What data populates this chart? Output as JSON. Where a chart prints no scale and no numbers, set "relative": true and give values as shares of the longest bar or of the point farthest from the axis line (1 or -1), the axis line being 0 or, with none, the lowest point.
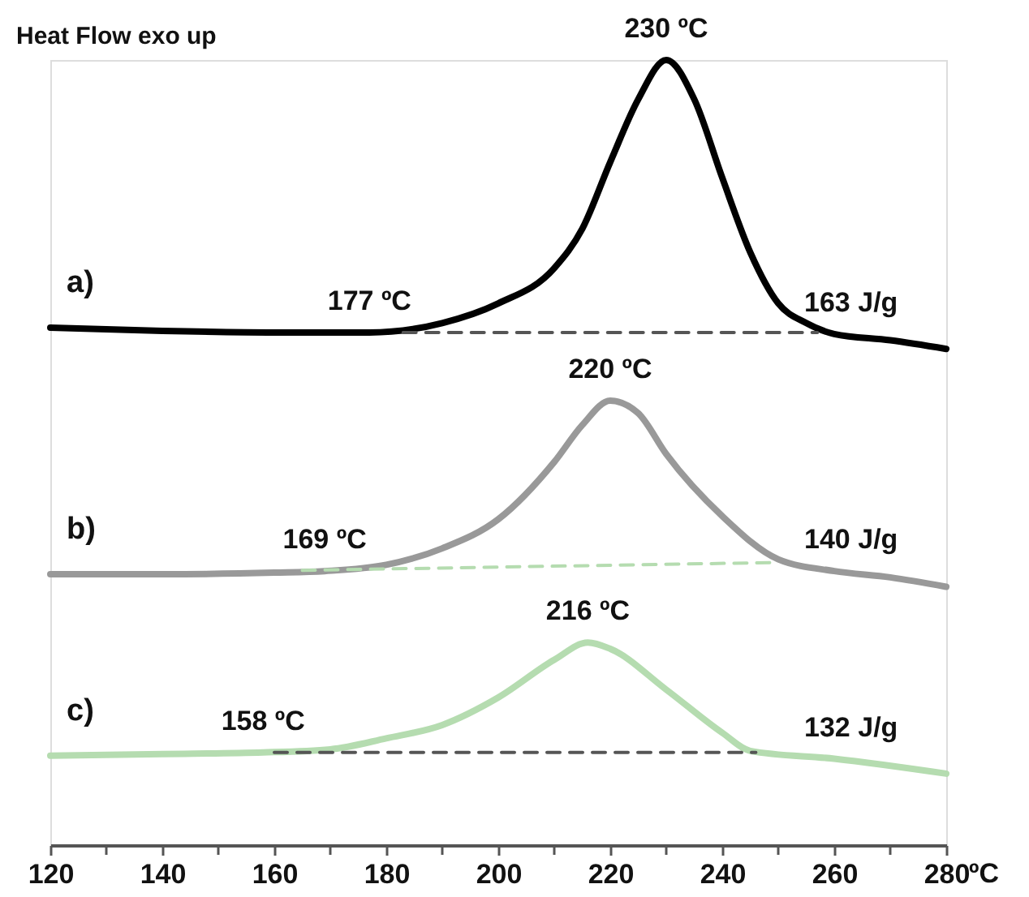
{
  "chart_data": {
    "type": "line",
    "relative": true,
    "ylabel": "Heat Flow exo up",
    "xlabel": "ºC",
    "xlim": [
      120,
      280
    ],
    "xticks": [
      120,
      {
        "value": 130,
        "label": null
      },
      140,
      {
        "value": 150,
        "label": null
      },
      160,
      {
        "value": 170,
        "label": null
      },
      180,
      {
        "value": 190,
        "label": null
      },
      200,
      {
        "value": 210,
        "label": null
      },
      220,
      {
        "value": 230,
        "label": null
      },
      240,
      {
        "value": 250,
        "label": null
      },
      260,
      {
        "value": 270,
        "label": null
      },
      280
    ],
    "grid": false,
    "marker": "none",
    "line_style": "solid",
    "series": [
      {
        "name": "a)",
        "color": "#000000",
        "x": [
          120,
          140,
          160,
          177,
          190,
          200,
          210,
          215,
          220,
          225,
          230,
          235,
          240,
          245,
          250,
          255,
          260,
          270,
          280
        ],
        "values": [
          0.659,
          0.655,
          0.653,
          0.653,
          0.665,
          0.69,
          0.735,
          0.785,
          0.87,
          0.95,
          1.0,
          0.95,
          0.85,
          0.755,
          0.69,
          0.665,
          0.651,
          0.643,
          0.632
        ]
      },
      {
        "name": "b)",
        "color": "#999999",
        "x": [
          120,
          140,
          160,
          169,
          180,
          190,
          200,
          210,
          215,
          220,
          225,
          230,
          240,
          250,
          260,
          270,
          280
        ],
        "values": [
          0.345,
          0.345,
          0.347,
          0.349,
          0.357,
          0.378,
          0.415,
          0.488,
          0.535,
          0.566,
          0.55,
          0.498,
          0.419,
          0.364,
          0.349,
          0.341,
          0.329
        ]
      },
      {
        "name": "c)",
        "color": "#b5dcb0",
        "x": [
          120,
          140,
          158,
          170,
          180,
          190,
          200,
          210,
          216,
          220,
          230,
          240,
          245,
          260,
          280
        ],
        "values": [
          0.114,
          0.116,
          0.118,
          0.122,
          0.136,
          0.153,
          0.188,
          0.236,
          0.258,
          0.25,
          0.198,
          0.143,
          0.12,
          0.11,
          0.091
        ]
      },
      {
        "type": "line",
        "line_style": "dashed",
        "color": "#555555",
        "x": [
          183,
          257
        ],
        "values": [
          0.653,
          0.653
        ]
      },
      {
        "type": "line",
        "line_style": "dashed",
        "color": "#b5dcb0",
        "x": [
          165,
          250
        ],
        "values": [
          0.35,
          0.36
        ]
      },
      {
        "type": "line",
        "line_style": "dashed",
        "color": "#555555",
        "x": [
          160,
          246
        ],
        "values": [
          0.118,
          0.118
        ]
      }
    ],
    "annotations": [
      {
        "text": "230 ºC",
        "x": 230,
        "y": 1.0
      },
      {
        "text": "177 ºC",
        "x": 177,
        "y": 0.653
      },
      {
        "text": "163 J/g",
        "x": 263,
        "y": 0.651
      },
      {
        "text": "220 ºC",
        "x": 220,
        "y": 0.566
      },
      {
        "text": "169 ºC",
        "x": 169,
        "y": 0.349
      },
      {
        "text": "140 J/g",
        "x": 263,
        "y": 0.349
      },
      {
        "text": "216 ºC",
        "x": 216,
        "y": 0.258
      },
      {
        "text": "158 ºC",
        "x": 158,
        "y": 0.118
      },
      {
        "text": "132 J/g",
        "x": 263,
        "y": 0.11
      }
    ]
  }
}
